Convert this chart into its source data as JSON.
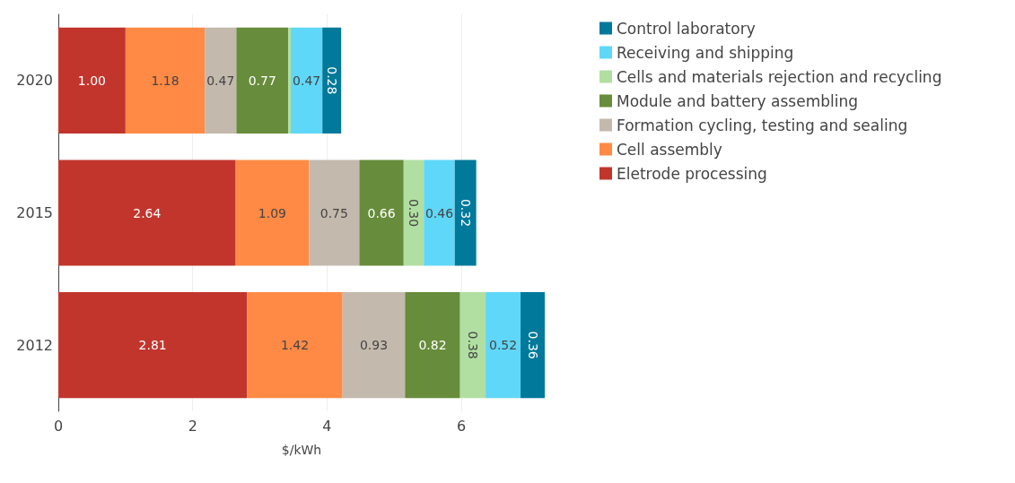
{
  "chart_data": {
    "type": "bar",
    "orientation": "horizontal",
    "stacked": true,
    "xlabel": "$/kWh",
    "categories": [
      "2020",
      "2015",
      "2012"
    ],
    "series": [
      {
        "name": "Eletrode processing",
        "color": "#c2352c",
        "values": [
          1.0,
          2.64,
          2.81
        ],
        "value_labels": [
          "1.00",
          "2.64",
          "2.81"
        ]
      },
      {
        "name": "Cell assembly",
        "color": "#ff8a45",
        "values": [
          1.18,
          1.09,
          1.42
        ],
        "value_labels": [
          "1.18",
          "1.09",
          "1.42"
        ]
      },
      {
        "name": "Formation cycling, testing and sealing",
        "color": "#c4b9ad",
        "values": [
          0.47,
          0.75,
          0.93
        ],
        "value_labels": [
          "0.47",
          "0.75",
          "0.93"
        ]
      },
      {
        "name": "Module and battery assembling",
        "color": "#678c3b",
        "values": [
          0.77,
          0.66,
          0.82
        ],
        "value_labels": [
          "0.77",
          "0.66",
          "0.82"
        ]
      },
      {
        "name": "Cells and materials rejection and recycling",
        "color": "#b1dfa1",
        "values": [
          0.04,
          0.3,
          0.38
        ],
        "value_labels": [
          null,
          "0.30",
          "0.38"
        ]
      },
      {
        "name": "Receiving and shipping",
        "color": "#5fd7f8",
        "values": [
          0.47,
          0.46,
          0.52
        ],
        "value_labels": [
          "0.47",
          "0.46",
          "0.52"
        ]
      },
      {
        "name": "Control laboratory",
        "color": "#00799a",
        "values": [
          0.28,
          0.32,
          0.36
        ],
        "value_labels": [
          "0.28",
          "0.32",
          "0.36"
        ]
      }
    ],
    "xlim": [
      0,
      7.24
    ],
    "xticks": [
      0,
      2,
      4,
      6
    ],
    "grid": "x",
    "legend": "top right"
  }
}
